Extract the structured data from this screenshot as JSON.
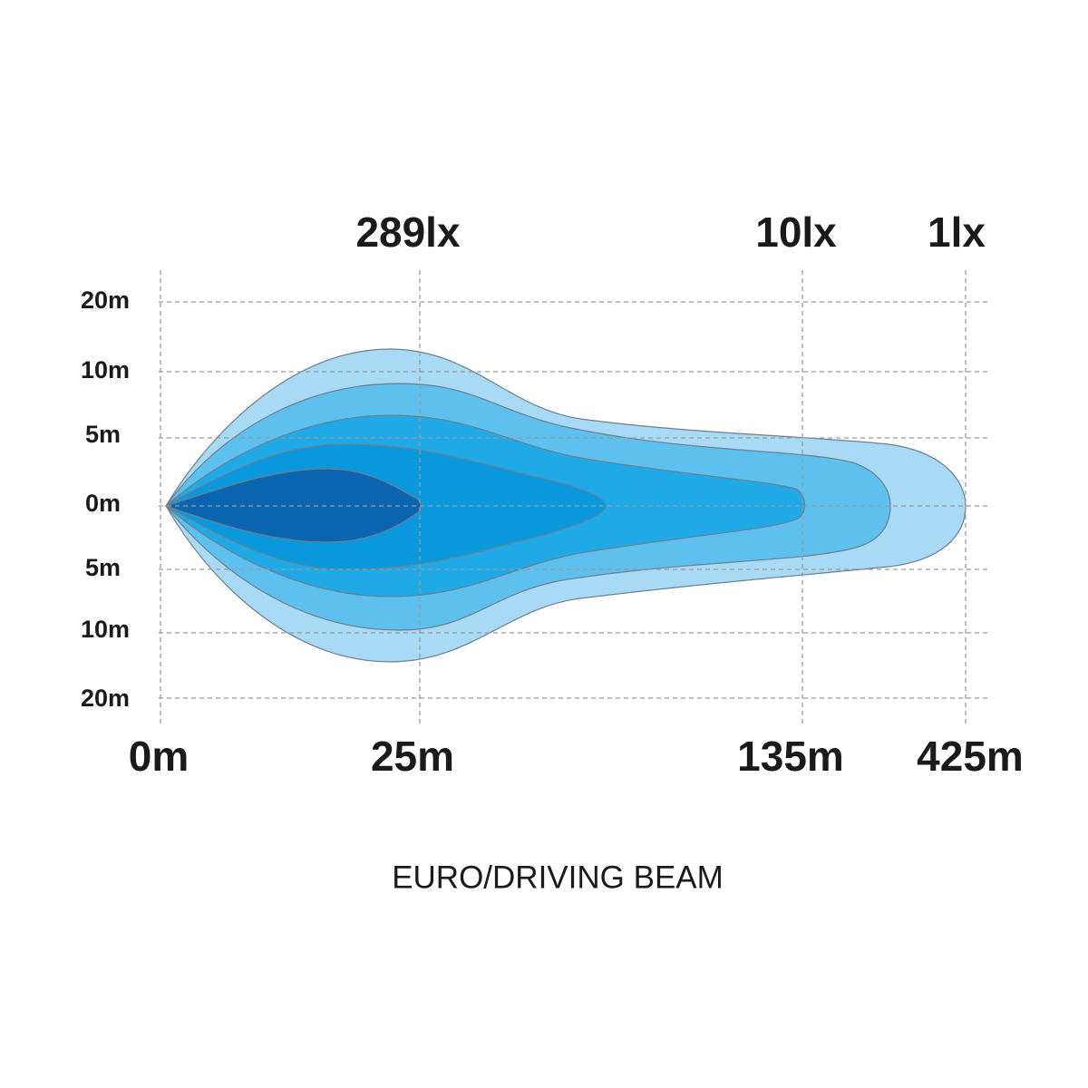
{
  "lux_labels": [
    "289lx",
    "10lx",
    "1lx"
  ],
  "y_labels": [
    "20m",
    "10m",
    "5m",
    "0m",
    "5m",
    "10m",
    "20m"
  ],
  "x_labels": [
    "0m",
    "25m",
    "135m",
    "425m"
  ],
  "caption": "EURO/DRIVING BEAM"
}
